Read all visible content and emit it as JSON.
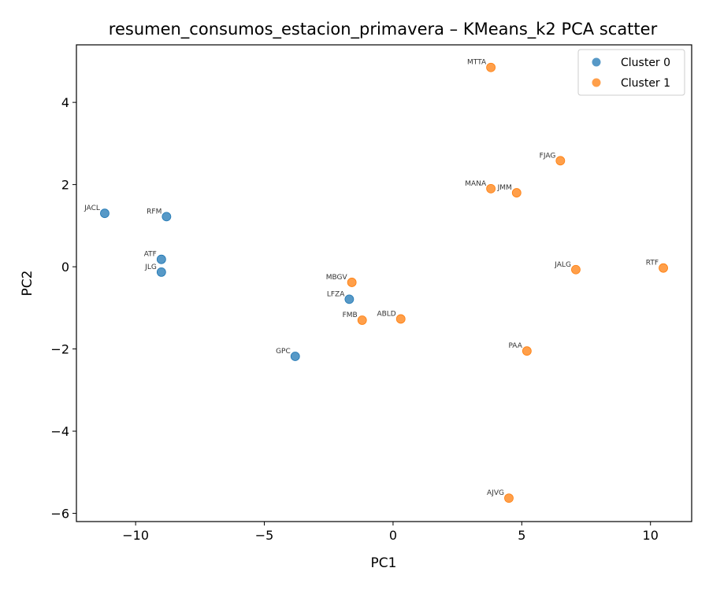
{
  "chart_data": {
    "type": "scatter",
    "title": "resumen_consumos_estacion_primavera – KMeans_k2 PCA scatter",
    "xlabel": "PC1",
    "ylabel": "PC2",
    "xlim": [
      -12.3,
      11.6
    ],
    "ylim": [
      -6.2,
      5.4
    ],
    "xticks": [
      -10,
      -5,
      0,
      5,
      10
    ],
    "yticks": [
      -6,
      -4,
      -2,
      0,
      2,
      4
    ],
    "xtick_labels": [
      "−10",
      "−5",
      "0",
      "5",
      "10"
    ],
    "ytick_labels": [
      "−6",
      "−4",
      "−2",
      "0",
      "2",
      "4"
    ],
    "grid": false,
    "legend_position": "top-right",
    "series": [
      {
        "name": "Cluster 0",
        "color": "#1f77b4",
        "points": [
          {
            "label": "JACL",
            "x": -11.2,
            "y": 1.3
          },
          {
            "label": "RFM",
            "x": -8.8,
            "y": 1.22
          },
          {
            "label": "ATF",
            "x": -9.0,
            "y": 0.18
          },
          {
            "label": "JLG",
            "x": -9.0,
            "y": -0.13
          },
          {
            "label": "LFZA",
            "x": -1.7,
            "y": -0.79
          },
          {
            "label": "GPC",
            "x": -3.8,
            "y": -2.18
          }
        ]
      },
      {
        "name": "Cluster 1",
        "color": "#ff7f0e",
        "points": [
          {
            "label": "MTTA",
            "x": 3.8,
            "y": 4.85
          },
          {
            "label": "FJAG",
            "x": 6.5,
            "y": 2.58
          },
          {
            "label": "MANA",
            "x": 3.8,
            "y": 1.9
          },
          {
            "label": "JMM",
            "x": 4.8,
            "y": 1.8
          },
          {
            "label": "JALG",
            "x": 7.1,
            "y": -0.07
          },
          {
            "label": "RTF",
            "x": 10.5,
            "y": -0.03
          },
          {
            "label": "MBGV",
            "x": -1.6,
            "y": -0.38
          },
          {
            "label": "FMB",
            "x": -1.2,
            "y": -1.3
          },
          {
            "label": "ABLD",
            "x": 0.3,
            "y": -1.27
          },
          {
            "label": "PAA",
            "x": 5.2,
            "y": -2.05
          },
          {
            "label": "AJVG",
            "x": 4.5,
            "y": -5.63
          }
        ]
      }
    ]
  }
}
